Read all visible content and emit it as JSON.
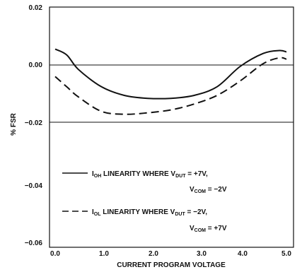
{
  "chart_data": {
    "type": "line",
    "xlabel": "CURRENT PROGRAM VOLTAGE",
    "ylabel": "% FSR",
    "xlim": [
      0.0,
      5.0
    ],
    "ylim": [
      -0.06,
      0.02
    ],
    "xticks": [
      "0.0",
      "1.0",
      "2.0",
      "3.0",
      "4.0",
      "5.0"
    ],
    "yticks": [
      "0.02",
      "0.00",
      "−0.02",
      "−0.04",
      "−0.06"
    ],
    "grid": "horizontal lines at 0.00 and -0.02",
    "series": [
      {
        "line_style": "solid",
        "legend": {
          "line1": "I_OH LINEARITY WHERE V_DUT = +7V,",
          "line2": "V_COM = −2V"
        },
        "x": [
          0.0,
          0.25,
          0.5,
          1.0,
          1.5,
          2.0,
          2.5,
          3.0,
          3.5,
          4.0,
          4.5,
          4.85,
          5.0
        ],
        "y": [
          0.0055,
          0.0035,
          -0.0015,
          -0.0075,
          -0.0105,
          -0.0115,
          -0.0115,
          -0.0105,
          -0.0075,
          -0.0005,
          0.004,
          0.005,
          0.0045
        ]
      },
      {
        "line_style": "dashed",
        "legend": {
          "line1": "I_OL LINEARITY WHERE V_DUT = −2V,",
          "line2": "V_COM = +7V"
        },
        "x": [
          0.0,
          0.25,
          0.5,
          1.0,
          1.5,
          2.0,
          2.5,
          3.0,
          3.5,
          4.0,
          4.5,
          4.85,
          5.0
        ],
        "y": [
          -0.004,
          -0.0075,
          -0.011,
          -0.016,
          -0.017,
          -0.0165,
          -0.0155,
          -0.0135,
          -0.0105,
          -0.0055,
          0.0005,
          0.0025,
          0.002
        ]
      }
    ]
  }
}
